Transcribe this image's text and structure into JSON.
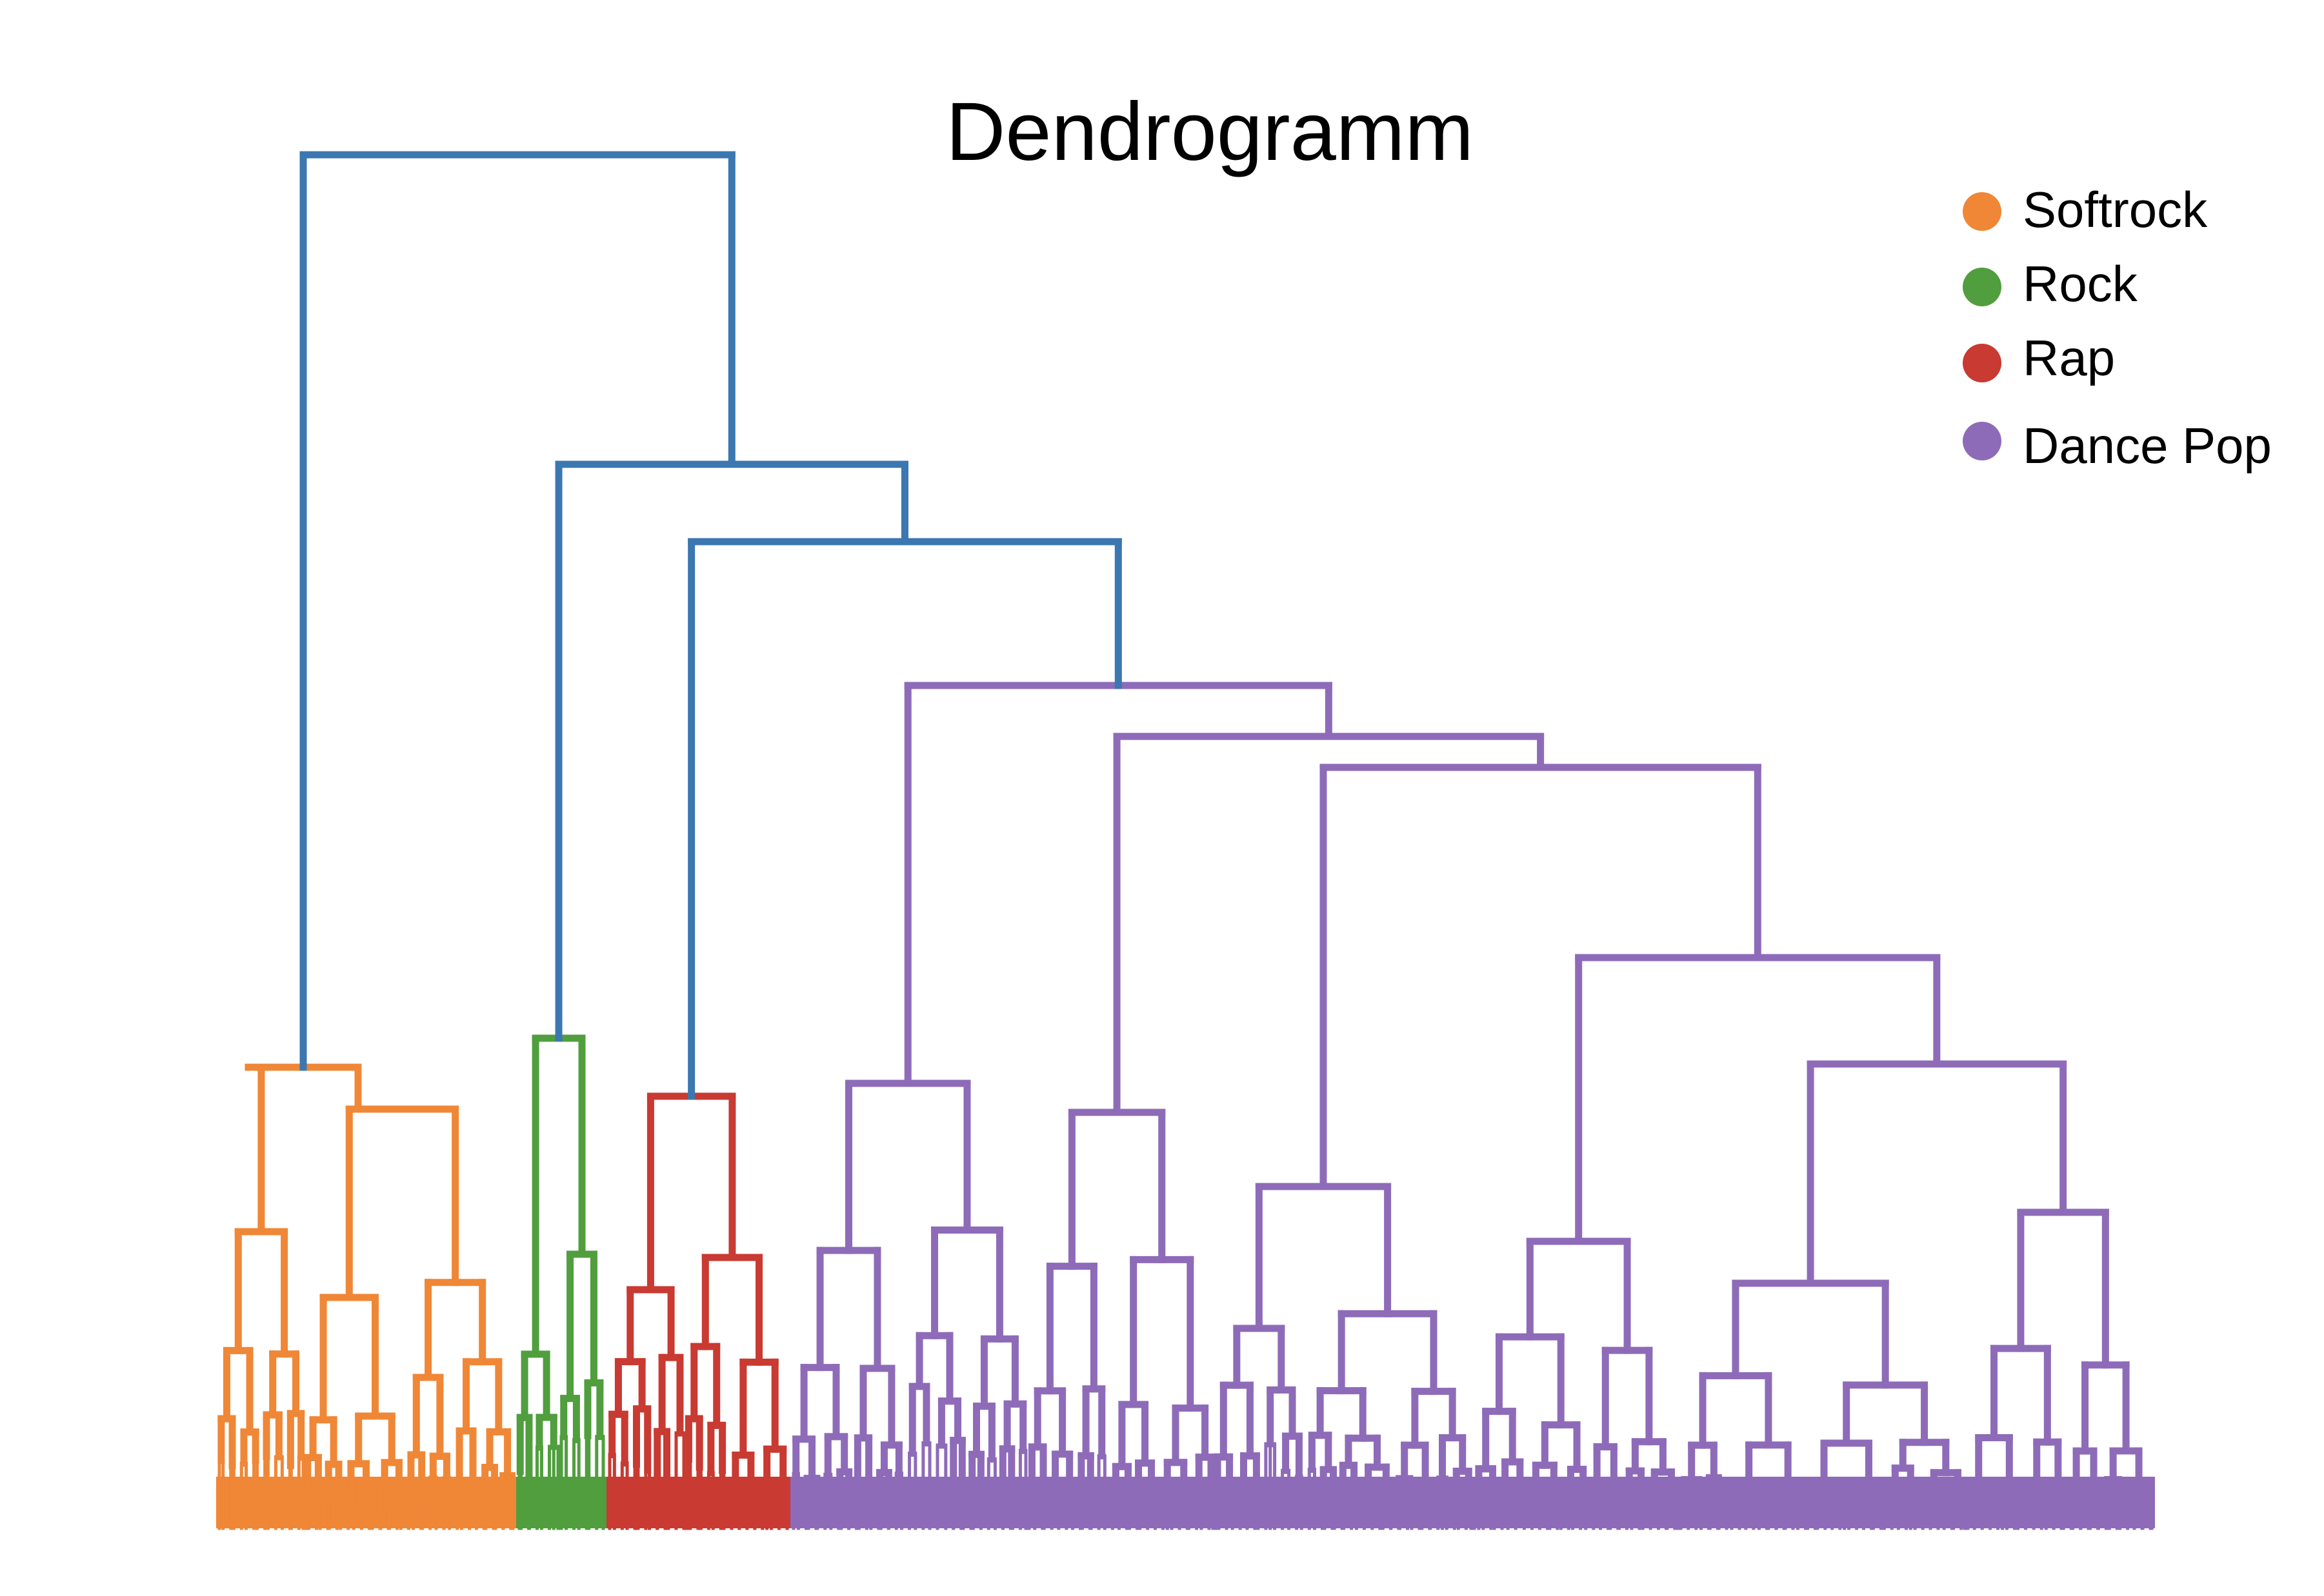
{
  "chart_data": {
    "type": "dendrogram",
    "title": "Dendrogramm",
    "xlabel": "",
    "ylabel": "",
    "grid": false,
    "legend_position": "top-right",
    "link_color": "#3b77b0",
    "clusters": [
      {
        "name": "Softrock",
        "color": "#ef8737"
      },
      {
        "name": "Rock",
        "color": "#509e3e"
      },
      {
        "name": "Rap",
        "color": "#c83a32"
      },
      {
        "name": "Dance Pop",
        "color": "#8e6bb8"
      }
    ],
    "top_merges": [
      {
        "join": [
          "Softrock",
          "rest"
        ],
        "height": 0.99
      },
      {
        "join": [
          "Rock",
          "Rap+Dance Pop"
        ],
        "height": 0.77
      },
      {
        "join": [
          "Rap",
          "Dance Pop"
        ],
        "height": 0.71
      },
      {
        "join": [
          "Dance Pop"
        ],
        "height": 0.61
      }
    ]
  }
}
